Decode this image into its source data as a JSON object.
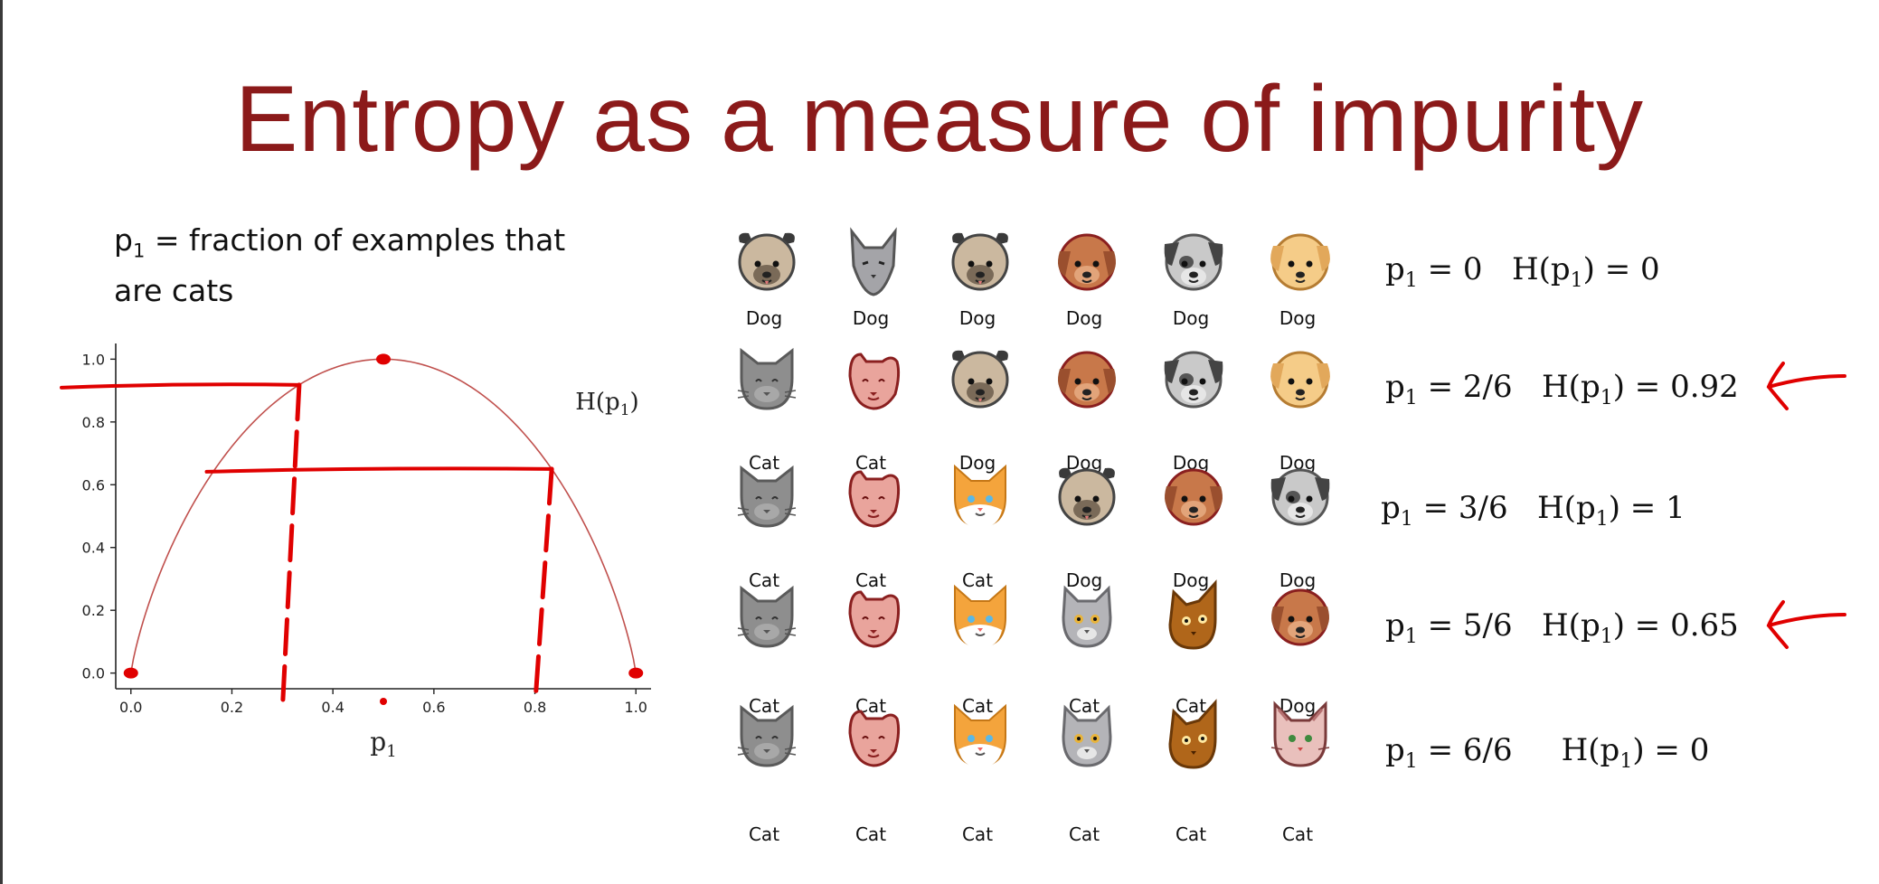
{
  "slide": {
    "title": "Entropy as a measure of impurity",
    "definition": {
      "p": "p",
      "sub": "1",
      "text_line1": " = fraction of examples that",
      "text_line2": "are cats"
    }
  },
  "chart_data": {
    "type": "line",
    "title": "",
    "xlabel": "p",
    "xlabel_sub": "1",
    "ylabel": "",
    "curve_label": "H(p",
    "curve_label_sub": "1",
    "curve_label_end": ")",
    "xlim": [
      -0.03,
      1.03
    ],
    "ylim": [
      -0.05,
      1.05
    ],
    "xticks": [
      "0.0",
      "0.2",
      "0.4",
      "0.6",
      "0.8",
      "1.0"
    ],
    "yticks": [
      "0.0",
      "0.2",
      "0.4",
      "0.6",
      "0.8",
      "1.0"
    ],
    "series": [
      {
        "x": [
          0.0,
          0.05,
          0.1,
          0.15,
          0.2,
          0.25,
          0.3,
          0.3333,
          0.35,
          0.4,
          0.45,
          0.5,
          0.55,
          0.6,
          0.65,
          0.7,
          0.75,
          0.8,
          0.8333,
          0.85,
          0.9,
          0.95,
          1.0
        ],
        "y": [
          0.0,
          0.286,
          0.469,
          0.61,
          0.722,
          0.811,
          0.881,
          0.918,
          0.934,
          0.971,
          0.993,
          1.0,
          0.993,
          0.971,
          0.934,
          0.881,
          0.811,
          0.722,
          0.65,
          0.61,
          0.469,
          0.286,
          0.0
        ],
        "color": "#c0504d"
      }
    ],
    "highlighted_points": [
      {
        "x": 0.0,
        "y": 0.0
      },
      {
        "x": 0.5,
        "y": 1.0
      },
      {
        "x": 1.0,
        "y": 0.0
      }
    ],
    "annotation_color": "#e00000",
    "annotation_guides": [
      {
        "x": 0.3333,
        "y": 0.918
      },
      {
        "x": 0.8333,
        "y": 0.65
      }
    ]
  },
  "rows": [
    {
      "animals": [
        {
          "kind": "pug",
          "label": "Dog"
        },
        {
          "kind": "gray-cat-pointy",
          "label": "Dog"
        },
        {
          "kind": "pug",
          "label": "Dog"
        },
        {
          "kind": "brown-dog",
          "label": "Dog"
        },
        {
          "kind": "gray-dog",
          "label": "Dog"
        },
        {
          "kind": "yellow-dog",
          "label": "Dog"
        }
      ],
      "eq_p": "p",
      "eq_sub": "1",
      "eq_value": " = 0",
      "eq_h": "H(p",
      "eq_h_sub": "1",
      "eq_h_end": ") = 0",
      "arrow": false
    },
    {
      "animals": [
        {
          "kind": "gray-cat",
          "label": "Cat"
        },
        {
          "kind": "pink-cat",
          "label": "Cat"
        },
        {
          "kind": "pug",
          "label": "Dog"
        },
        {
          "kind": "brown-dog",
          "label": "Dog"
        },
        {
          "kind": "gray-dog",
          "label": "Dog"
        },
        {
          "kind": "yellow-dog",
          "label": "Dog"
        }
      ],
      "eq_p": "p",
      "eq_sub": "1",
      "eq_value": " = 2/6",
      "eq_h": "H(p",
      "eq_h_sub": "1",
      "eq_h_end": ") = 0.92",
      "arrow": true
    },
    {
      "animals": [
        {
          "kind": "gray-cat",
          "label": "Cat"
        },
        {
          "kind": "pink-cat",
          "label": "Cat"
        },
        {
          "kind": "orange-cat",
          "label": "Cat"
        },
        {
          "kind": "pug",
          "label": "Dog"
        },
        {
          "kind": "brown-dog",
          "label": "Dog"
        },
        {
          "kind": "gray-dog",
          "label": "Dog"
        }
      ],
      "eq_p": "p",
      "eq_sub": "1",
      "eq_value": " = 3/6",
      "eq_h": "H(p",
      "eq_h_sub": "1",
      "eq_h_end": ") = 1",
      "arrow": false
    },
    {
      "animals": [
        {
          "kind": "gray-cat",
          "label": "Cat"
        },
        {
          "kind": "pink-cat",
          "label": "Cat"
        },
        {
          "kind": "orange-cat",
          "label": "Cat"
        },
        {
          "kind": "silver-cat",
          "label": "Cat"
        },
        {
          "kind": "brown-cat",
          "label": "Cat"
        },
        {
          "kind": "brown-dog",
          "label": "Dog"
        }
      ],
      "eq_p": "p",
      "eq_sub": "1",
      "eq_value": " = 5/6",
      "eq_h": "H(p",
      "eq_h_sub": "1",
      "eq_h_end": ") = 0.65",
      "arrow": true
    },
    {
      "animals": [
        {
          "kind": "gray-cat",
          "label": "Cat"
        },
        {
          "kind": "pink-cat",
          "label": "Cat"
        },
        {
          "kind": "orange-cat",
          "label": "Cat"
        },
        {
          "kind": "silver-cat",
          "label": "Cat"
        },
        {
          "kind": "brown-cat",
          "label": "Cat"
        },
        {
          "kind": "tabby-cat",
          "label": "Cat"
        }
      ],
      "eq_p": "p",
      "eq_sub": "1",
      "eq_value": " = 6/6",
      "eq_h": "H(p",
      "eq_h_sub": "1",
      "eq_h_end": ") = 0",
      "arrow": false
    }
  ]
}
